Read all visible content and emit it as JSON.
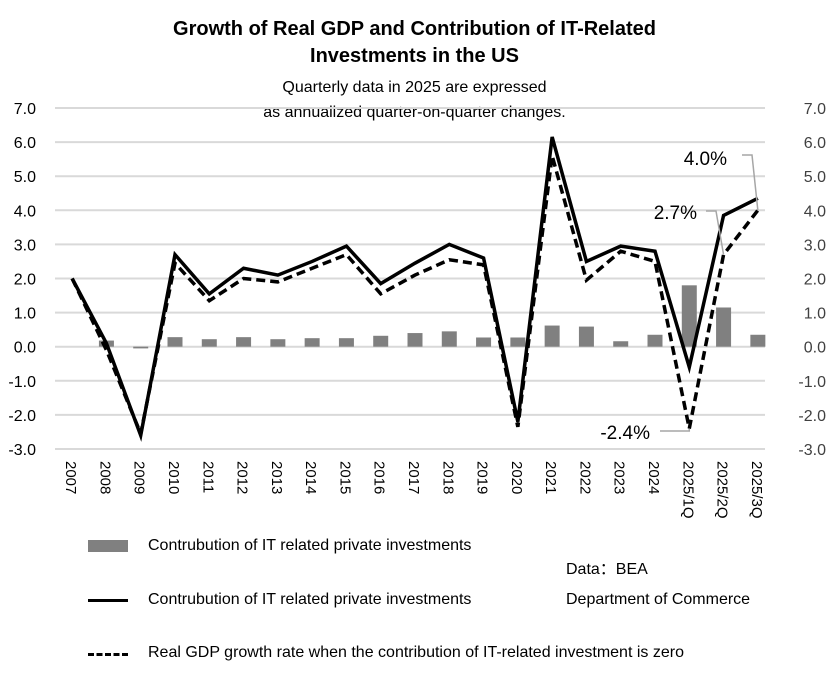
{
  "chart_data": {
    "type": "bar+line",
    "title_line1": "Growth of Real GDP and Contribution of IT-Related",
    "title_line2": "Investments in the US",
    "subtitle_line1": "Quarterly data in 2025 are expressed",
    "subtitle_line2": "as annualized quarter-on-quarter changes.",
    "categories": [
      "2007",
      "2008",
      "2009",
      "2010",
      "2011",
      "2012",
      "2013",
      "2014",
      "2015",
      "2016",
      "2017",
      "2018",
      "2019",
      "2020",
      "2021",
      "2022",
      "2023",
      "2024",
      "2025/1Q",
      "2025/2Q",
      "2025/3Q"
    ],
    "ylim": [
      -3.0,
      7.0
    ],
    "yticks": [
      "7.0",
      "6.0",
      "5.0",
      "4.0",
      "3.0",
      "2.0",
      "1.0",
      "0.0",
      "-1.0",
      "-2.0",
      "-3.0"
    ],
    "ytick_values": [
      7,
      6,
      5,
      4,
      3,
      2,
      1,
      0,
      -1,
      -2,
      -3
    ],
    "grid": true,
    "series": [
      {
        "name": "Contrubution of IT related private investments",
        "kind": "bar",
        "color": "#808080",
        "values": [
          null,
          0.18,
          -0.05,
          0.28,
          0.22,
          0.28,
          0.22,
          0.25,
          0.25,
          0.32,
          0.4,
          0.45,
          0.27,
          0.27,
          0.62,
          0.59,
          0.16,
          0.35,
          1.8,
          1.15,
          0.35
        ]
      },
      {
        "name": "Contrubution of IT related private investments",
        "kind": "line-solid",
        "color": "#000000",
        "values": [
          2.0,
          0.1,
          -2.6,
          2.7,
          1.55,
          2.3,
          2.1,
          2.5,
          2.95,
          1.85,
          2.45,
          3.0,
          2.6,
          -2.2,
          6.15,
          2.5,
          2.95,
          2.8,
          -0.6,
          3.85,
          4.35
        ]
      },
      {
        "name": "Real GDP growth rate when the contribution of IT-related investment is zero",
        "kind": "line-dashed",
        "color": "#000000",
        "values": [
          2.0,
          -0.1,
          -2.55,
          2.45,
          1.35,
          2.0,
          1.9,
          2.3,
          2.7,
          1.55,
          2.1,
          2.55,
          2.4,
          -2.35,
          5.6,
          1.95,
          2.8,
          2.5,
          -2.4,
          2.7,
          4.0
        ]
      }
    ],
    "annotations": [
      {
        "text": "4.0%",
        "category": "2025/3Q",
        "series": "line-dashed"
      },
      {
        "text": "2.7%",
        "category": "2025/2Q",
        "series": "line-dashed"
      },
      {
        "text": "-2.4%",
        "category": "2025/1Q",
        "series": "line-dashed"
      }
    ],
    "legend": [
      "Contrubution of IT related private investments",
      "Contrubution of IT related private investments",
      "Real GDP growth rate when the contribution of IT-related investment is zero"
    ],
    "legend_position": "bottom",
    "source_line1": "Data：BEA",
    "source_line2": "Department of Commerce"
  }
}
